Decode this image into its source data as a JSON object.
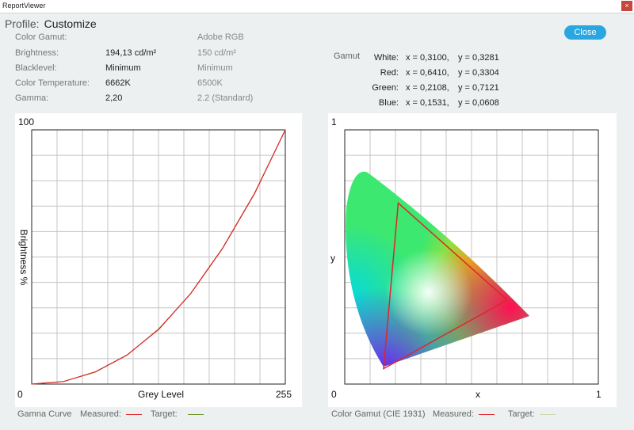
{
  "window": {
    "title": "ReportViewer",
    "close_glyph": "×"
  },
  "profile": {
    "label": "Profile:",
    "value": "Customize"
  },
  "close_button": "Close",
  "info_rows": [
    {
      "label": "Color Gamut:",
      "value": "",
      "target": "Adobe RGB"
    },
    {
      "label": "Brightness:",
      "value": "194,13 cd/m²",
      "target": "150 cd/m²"
    },
    {
      "label": "Blacklevel:",
      "value": "Minimum",
      "target": "Minimum"
    },
    {
      "label": "Color Temperature:",
      "value": "6662K",
      "target": "6500K"
    },
    {
      "label": "Gamma:",
      "value": "2,20",
      "target": "2.2 (Standard)"
    }
  ],
  "gamut": {
    "label": "Gamut",
    "rows": [
      {
        "name": "White:",
        "x": "x = 0,3100,",
        "y": "y = 0,3281"
      },
      {
        "name": "Red:",
        "x": "x = 0,6410,",
        "y": "y = 0,3304"
      },
      {
        "name": "Green:",
        "x": "x = 0,2108,",
        "y": "y = 0,7121"
      },
      {
        "name": "Blue:",
        "x": "x = 0,1531,",
        "y": "y = 0,0608"
      }
    ]
  },
  "gamma_chart": {
    "y_max_label": "100",
    "x_min_label": "0",
    "x_max_label": "255",
    "xlabel": "Grey Level",
    "ylabel": "Brightness %",
    "footer": "Gamna Curve",
    "measured_label": "Measured:",
    "target_label": "Target:"
  },
  "cie_chart": {
    "y_max_label": "1",
    "x_min_label": "0",
    "x_max_label": "1",
    "xlabel": "x",
    "ylabel": "y",
    "footer": "Color Gamut (CIE 1931)",
    "measured_label": "Measured:",
    "target_label": "Target:"
  },
  "colors": {
    "measured": "#e0242a",
    "gamma_target": "#6b8f2a",
    "cie_target": "#c8d8b0",
    "accent": "#2aa7e0",
    "close_red": "#c9463d"
  },
  "chart_data": [
    {
      "type": "line",
      "x": [
        0,
        32,
        64,
        96,
        128,
        160,
        192,
        224,
        255
      ],
      "series": [
        {
          "name": "Measured",
          "values": [
            0,
            1.0,
            4.8,
            11.5,
            21.6,
            35.7,
            53.5,
            75.0,
            100
          ]
        },
        {
          "name": "Target",
          "values": [
            0,
            1.0,
            4.7,
            11.4,
            21.8,
            35.6,
            53.3,
            74.8,
            100
          ]
        }
      ],
      "xlabel": "Grey Level",
      "ylabel": "Brightness %",
      "xlim": [
        0,
        255
      ],
      "ylim": [
        0,
        100
      ],
      "grid": true
    },
    {
      "type": "scatter",
      "series": [
        {
          "name": "Measured",
          "points": [
            [
              0.641,
              0.3304
            ],
            [
              0.2108,
              0.7121
            ],
            [
              0.1531,
              0.0608
            ]
          ]
        }
      ],
      "white_point": [
        0.31,
        0.3281
      ],
      "xlabel": "x",
      "ylabel": "y",
      "xlim": [
        0,
        1
      ],
      "ylim": [
        0,
        1
      ],
      "grid": true
    }
  ]
}
